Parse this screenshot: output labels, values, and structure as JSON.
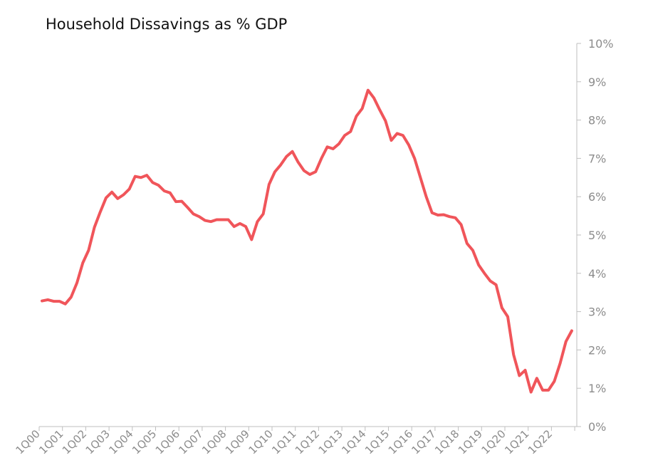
{
  "chart_data": {
    "type": "line",
    "title": "Household Dissavings as % GDP",
    "xlabel": "",
    "ylabel": "",
    "y_axis_position": "right",
    "ylim": [
      0,
      10
    ],
    "yticks": [
      0,
      1,
      2,
      3,
      4,
      5,
      6,
      7,
      8,
      9,
      10
    ],
    "ytick_labels": [
      "0%",
      "1%",
      "2%",
      "3%",
      "4%",
      "5%",
      "6%",
      "7%",
      "8%",
      "9%",
      "10%"
    ],
    "x_tick_labels": [
      "1Q00",
      "1Q01",
      "1Q02",
      "1Q03",
      "1Q04",
      "1Q05",
      "1Q06",
      "1Q07",
      "1Q08",
      "1Q09",
      "1Q10",
      "1Q11",
      "1Q12",
      "1Q13",
      "1Q14",
      "1Q15",
      "1Q16",
      "1Q17",
      "1Q18",
      "1Q19",
      "1Q20",
      "1Q21",
      "1Q22"
    ],
    "grid": false,
    "legend": "none",
    "series": [
      {
        "color": "#f0555a",
        "values": [
          3.28,
          3.31,
          3.27,
          3.27,
          3.2,
          3.38,
          3.75,
          4.27,
          4.6,
          5.2,
          5.6,
          5.97,
          6.12,
          5.95,
          6.05,
          6.2,
          6.53,
          6.5,
          6.56,
          6.37,
          6.3,
          6.15,
          6.1,
          5.87,
          5.88,
          5.72,
          5.55,
          5.48,
          5.38,
          5.35,
          5.4,
          5.4,
          5.4,
          5.22,
          5.3,
          5.22,
          4.88,
          5.35,
          5.55,
          6.32,
          6.65,
          6.83,
          7.05,
          7.18,
          6.9,
          6.68,
          6.58,
          6.65,
          7.0,
          7.3,
          7.25,
          7.38,
          7.6,
          7.7,
          8.1,
          8.3,
          8.78,
          8.58,
          8.27,
          7.98,
          7.47,
          7.65,
          7.6,
          7.35,
          7.0,
          6.5,
          6.0,
          5.58,
          5.52,
          5.53,
          5.48,
          5.45,
          5.27,
          4.78,
          4.6,
          4.22,
          4.0,
          3.8,
          3.7,
          3.1,
          2.87,
          1.88,
          1.33,
          1.47,
          0.9,
          1.26,
          0.95,
          0.95,
          1.18,
          1.65,
          2.22,
          2.5
        ]
      }
    ]
  }
}
